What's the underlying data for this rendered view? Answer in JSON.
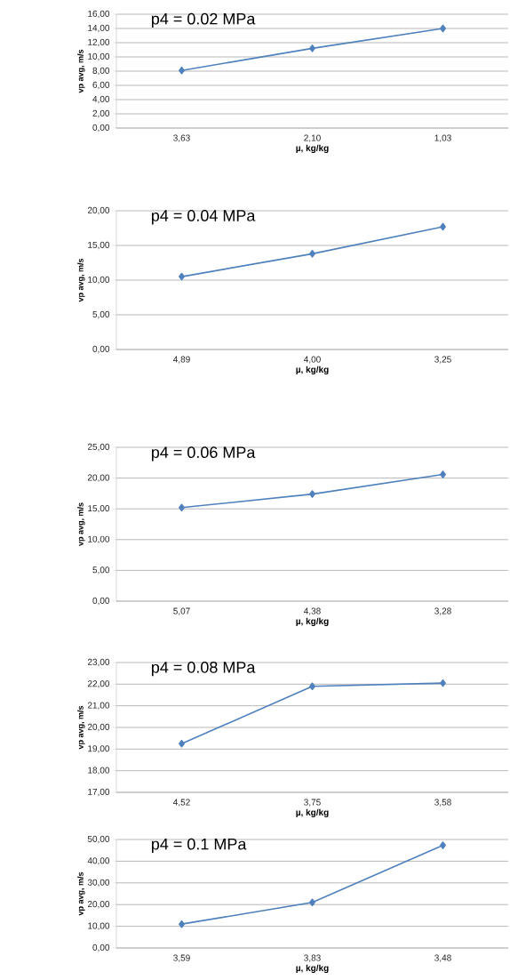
{
  "chart_data": [
    {
      "type": "line",
      "title": "p4 = 0.02 MPa",
      "xlabel": "µ, kg/kg",
      "ylabel": "vp avg, m/s",
      "categories": [
        "3,63",
        "2,10",
        "1,03"
      ],
      "values": [
        8.1,
        11.2,
        14.0
      ],
      "color": "#4f81bd",
      "marker": "diamond",
      "grid": "y",
      "ylim": [
        0,
        16
      ],
      "yticks": [
        {
          "value": 0,
          "label": "0,00"
        },
        {
          "value": 2,
          "label": "2,00"
        },
        {
          "value": 4,
          "label": "4,00"
        },
        {
          "value": 6,
          "label": "6,00"
        },
        {
          "value": 8,
          "label": "8,00"
        },
        {
          "value": 10,
          "label": "10,00"
        },
        {
          "value": 12,
          "label": "12,00"
        },
        {
          "value": 14,
          "label": "14,00"
        },
        {
          "value": 16,
          "label": "16,00"
        }
      ]
    },
    {
      "type": "line",
      "title": "p4 = 0.04 MPa",
      "xlabel": "µ, kg/kg",
      "ylabel": "vp avg, m/s",
      "categories": [
        "4,89",
        "4,00",
        "3,25"
      ],
      "values": [
        10.5,
        13.8,
        17.7
      ],
      "color": "#4f81bd",
      "marker": "diamond",
      "grid": "y",
      "ylim": [
        0,
        20
      ],
      "yticks": [
        {
          "value": 0,
          "label": "0,00"
        },
        {
          "value": 5,
          "label": "5,00"
        },
        {
          "value": 10,
          "label": "10,00"
        },
        {
          "value": 15,
          "label": "15,00"
        },
        {
          "value": 20,
          "label": "20,00"
        }
      ]
    },
    {
      "type": "line",
      "title": "p4 = 0.06 MPa",
      "xlabel": "µ, kg/kg",
      "ylabel": "vp avg, m/s",
      "categories": [
        "5,07",
        "4,38",
        "3,28"
      ],
      "values": [
        15.2,
        17.4,
        20.6
      ],
      "color": "#4f81bd",
      "marker": "diamond",
      "grid": "y",
      "ylim": [
        0,
        25
      ],
      "yticks": [
        {
          "value": 0,
          "label": "0,00"
        },
        {
          "value": 5,
          "label": "5,00"
        },
        {
          "value": 10,
          "label": "10,00"
        },
        {
          "value": 15,
          "label": "15,00"
        },
        {
          "value": 20,
          "label": "20,00"
        },
        {
          "value": 25,
          "label": "25,00"
        }
      ]
    },
    {
      "type": "line",
      "title": "p4 = 0.08 MPa",
      "xlabel": "µ, kg/kg",
      "ylabel": "vp avg, m/s",
      "categories": [
        "4,52",
        "3,75",
        "3,58"
      ],
      "values": [
        19.25,
        21.9,
        22.05
      ],
      "color": "#4f81bd",
      "marker": "diamond",
      "grid": "y",
      "ylim": [
        17,
        23
      ],
      "yticks": [
        {
          "value": 17,
          "label": "17,00"
        },
        {
          "value": 18,
          "label": "18,00"
        },
        {
          "value": 19,
          "label": "19,00"
        },
        {
          "value": 20,
          "label": "20,00"
        },
        {
          "value": 21,
          "label": "21,00"
        },
        {
          "value": 22,
          "label": "22,00"
        },
        {
          "value": 23,
          "label": "23,00"
        }
      ]
    },
    {
      "type": "line",
      "title": "p4 = 0.1 MPa",
      "xlabel": "µ, kg/kg",
      "ylabel": "vp avg, m/s",
      "categories": [
        "3,59",
        "3,83",
        "3,48"
      ],
      "values": [
        11.0,
        21.0,
        47.3
      ],
      "color": "#4f81bd",
      "marker": "diamond",
      "grid": "y",
      "ylim": [
        0,
        50
      ],
      "yticks": [
        {
          "value": 0,
          "label": "0,00"
        },
        {
          "value": 10,
          "label": "10,00"
        },
        {
          "value": 20,
          "label": "20,00"
        },
        {
          "value": 30,
          "label": "30,00"
        },
        {
          "value": 40,
          "label": "40,00"
        },
        {
          "value": 50,
          "label": "50,00"
        }
      ]
    }
  ]
}
